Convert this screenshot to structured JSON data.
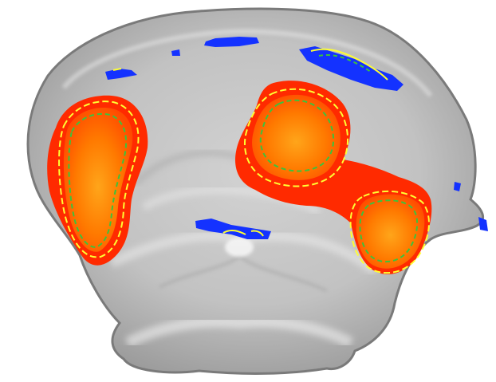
{
  "image": {
    "subject": "",
    "colors": {
      "background": "#ffffff",
      "tissue_light": "#e6e6e6",
      "tissue_mid": "#b9b9b9",
      "tissue_dark": "#8f8f8f",
      "activation_red": "#ff2a00",
      "activation_orange": "#ff7a00",
      "activation_core": "#ff9a10",
      "deactivation_blue": "#1432ff",
      "contour_yellow": "#ffff33",
      "contour_green": "#3cc23c"
    }
  }
}
